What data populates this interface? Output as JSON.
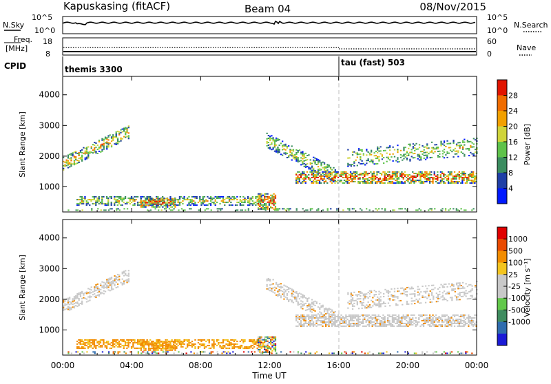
{
  "header": {
    "station": "Kapuskasing (fitACF)",
    "beam": "Beam 04",
    "date": "08/Nov/2015"
  },
  "nsky_panel": {
    "label": "N.Sky",
    "left_ticks": [
      "10^5",
      "10^0"
    ],
    "right_label": "N.Search",
    "right_ticks": [
      "10^5",
      "10^0"
    ]
  },
  "freq_panel": {
    "label_line1": "Freq.",
    "label_line2": "[MHz]",
    "left_ticks": [
      "18",
      "8"
    ],
    "right_label": "Nave",
    "right_ticks": [
      "60",
      "0"
    ]
  },
  "cpid": {
    "label": "CPID",
    "segments": [
      {
        "name": "themis 3300",
        "start_hour": 0
      },
      {
        "name": "tau (fast) 503",
        "start_hour": 16
      }
    ]
  },
  "x_axis": {
    "label": "Time UT",
    "ticks": [
      "00:00",
      "04:00",
      "08:00",
      "12:00",
      "16:00",
      "20:00",
      "00:00"
    ],
    "range_hours": [
      0,
      24
    ],
    "marker_hour": 16
  },
  "chart_data": [
    {
      "type": "heatmap",
      "name": "power",
      "ylabel": "Slant Range [km]",
      "ylim": [
        180,
        4600
      ],
      "yticks": [
        1000,
        2000,
        3000,
        4000
      ],
      "colorbar": {
        "label": "Power [dB]",
        "ticks": [
          "4",
          "8",
          "12",
          "16",
          "20",
          "24",
          "28"
        ],
        "colors": [
          "#0019ff",
          "#1f3fa6",
          "#3a8c5f",
          "#5ec24a",
          "#cfd43a",
          "#f2a000",
          "#f06c00",
          "#e11400"
        ]
      }
    },
    {
      "type": "heatmap",
      "name": "velocity",
      "ylabel": "Slant Range [km]",
      "ylim": [
        180,
        4600
      ],
      "yticks": [
        1000,
        2000,
        3000,
        4000
      ],
      "colorbar": {
        "label": "Velocity [m s⁻¹]",
        "ticks": [
          "1000",
          "500",
          "100",
          "25",
          "-25",
          "-100",
          "-500",
          "-1000"
        ],
        "colors": [
          "#1b1bd6",
          "#2e6cae",
          "#3f8c5f",
          "#62c84a",
          "#c8c8c8",
          "#c8c8c8",
          "#f3c41e",
          "#f28c00",
          "#ea4a00",
          "#e00000"
        ]
      }
    }
  ]
}
